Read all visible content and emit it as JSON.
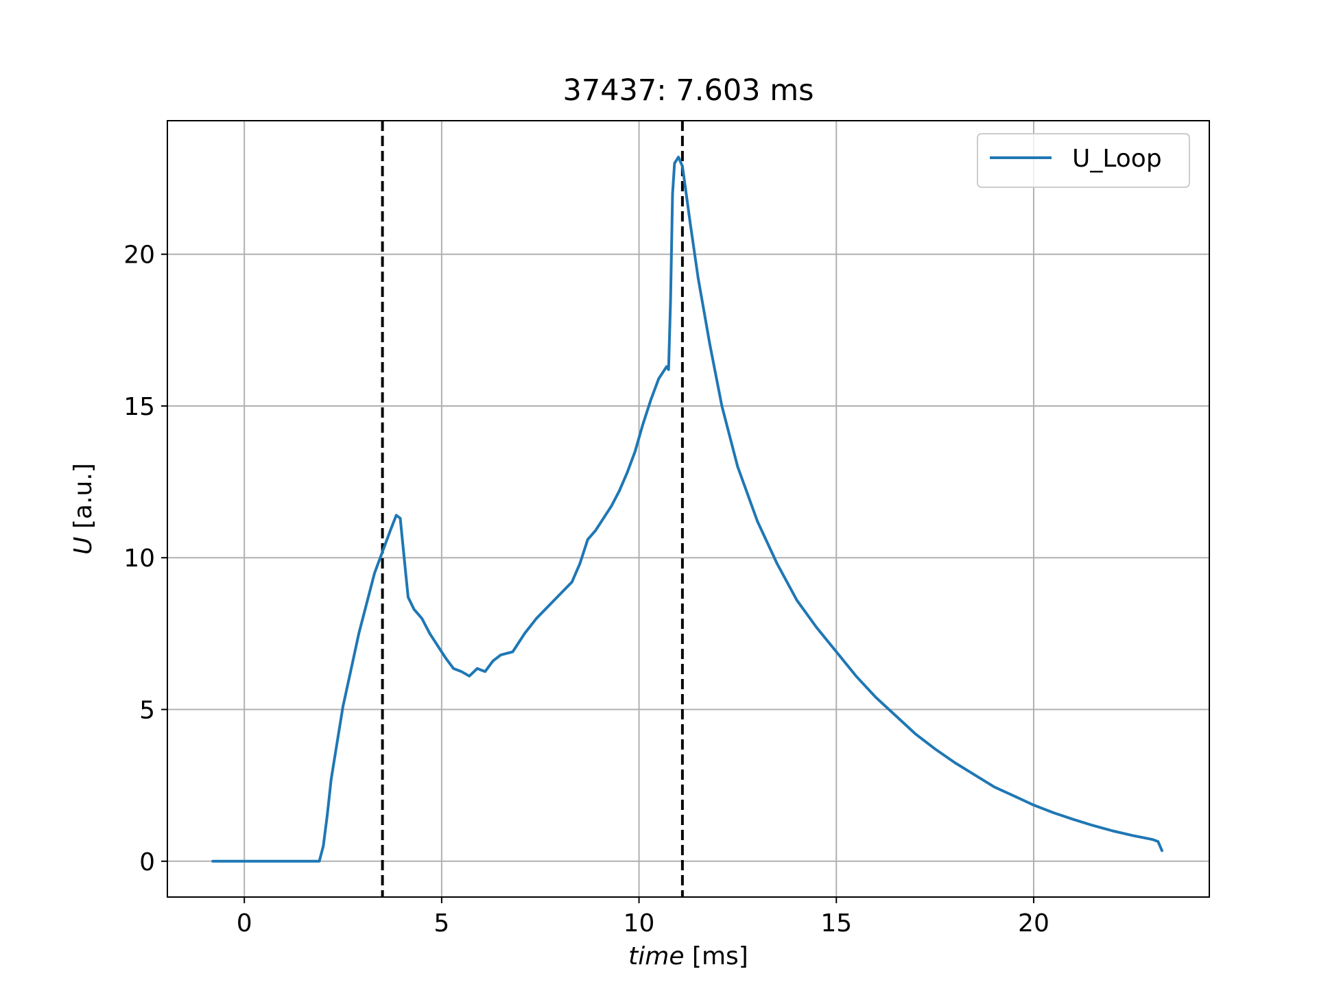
{
  "chart_data": {
    "type": "line",
    "title": "37437: 7.603 ms",
    "xlabel": {
      "italic": "time",
      "rest": " [ms]"
    },
    "ylabel": {
      "italic": "U",
      "rest": " [a.u.]"
    },
    "xlim": [
      -1.95,
      24.45
    ],
    "ylim": [
      -1.18,
      24.4
    ],
    "xticks": [
      0,
      5,
      10,
      15,
      20
    ],
    "yticks": [
      0,
      5,
      10,
      15,
      20
    ],
    "xtick_labels": [
      "0",
      "5",
      "10",
      "15",
      "20"
    ],
    "ytick_labels": [
      "0",
      "5",
      "10",
      "15",
      "20"
    ],
    "grid": true,
    "legend_position": "top-right",
    "vlines": [
      3.5,
      11.1
    ],
    "vline_style": {
      "color": "#000000",
      "dash": "dashed"
    },
    "series": [
      {
        "name": "U_Loop",
        "color": "#1f77b4",
        "x": [
          -0.8,
          0.0,
          0.5,
          1.0,
          1.5,
          1.9,
          2.0,
          2.1,
          2.2,
          2.3,
          2.5,
          2.7,
          2.9,
          3.1,
          3.3,
          3.5,
          3.7,
          3.85,
          3.95,
          4.05,
          4.15,
          4.3,
          4.5,
          4.7,
          4.9,
          5.1,
          5.3,
          5.5,
          5.7,
          5.9,
          6.1,
          6.3,
          6.5,
          6.8,
          7.1,
          7.4,
          7.7,
          8.0,
          8.3,
          8.5,
          8.7,
          8.9,
          9.1,
          9.3,
          9.5,
          9.7,
          9.9,
          10.1,
          10.3,
          10.5,
          10.7,
          10.75,
          10.8,
          10.85,
          10.9,
          11.0,
          11.1,
          11.3,
          11.5,
          11.8,
          12.1,
          12.5,
          13.0,
          13.5,
          14.0,
          14.5,
          15.0,
          15.5,
          16.0,
          16.5,
          17.0,
          17.5,
          18.0,
          18.5,
          19.0,
          19.5,
          20.0,
          20.5,
          21.0,
          21.5,
          22.0,
          22.5,
          23.0,
          23.15,
          23.25
        ],
        "y": [
          0.0,
          0.0,
          0.0,
          0.0,
          0.0,
          0.0,
          0.5,
          1.5,
          2.7,
          3.5,
          5.1,
          6.3,
          7.5,
          8.5,
          9.5,
          10.2,
          10.9,
          11.4,
          11.3,
          10.0,
          8.7,
          8.3,
          8.0,
          7.5,
          7.1,
          6.7,
          6.35,
          6.25,
          6.1,
          6.35,
          6.25,
          6.6,
          6.8,
          6.9,
          7.5,
          8.0,
          8.4,
          8.8,
          9.2,
          9.8,
          10.6,
          10.9,
          11.3,
          11.7,
          12.2,
          12.8,
          13.5,
          14.4,
          15.2,
          15.9,
          16.3,
          16.2,
          18.5,
          22.0,
          23.0,
          23.2,
          22.9,
          21.0,
          19.2,
          17.0,
          15.0,
          13.0,
          11.2,
          9.8,
          8.6,
          7.7,
          6.9,
          6.1,
          5.4,
          4.8,
          4.2,
          3.7,
          3.25,
          2.85,
          2.45,
          2.15,
          1.85,
          1.6,
          1.38,
          1.18,
          1.0,
          0.85,
          0.72,
          0.65,
          0.35
        ]
      }
    ]
  }
}
